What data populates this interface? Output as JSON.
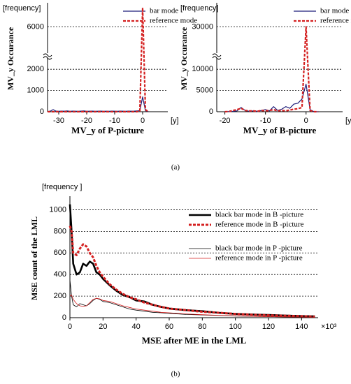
{
  "captions": [
    "(a)",
    "(b)"
  ],
  "chart_data": [
    {
      "type": "line",
      "unit_label": "[frequency]",
      "x_label": "MV_y of P-picture",
      "y_label": "MV_y Occurance",
      "x_unit": "[y]",
      "x": [
        -34,
        -33,
        -32,
        -31,
        -30,
        -29,
        -28,
        -27,
        -26,
        -25,
        -24,
        -23,
        -22,
        -21,
        -20,
        -19,
        -18,
        -17,
        -16,
        -15,
        -14,
        -13,
        -12,
        -11,
        -10,
        -9,
        -8,
        -7,
        -6,
        -5,
        -4,
        -3,
        -2,
        -1,
        0,
        1,
        2
      ],
      "series": [
        {
          "name": "bar mode",
          "color": "#1f1f7a",
          "line_width": 1.2,
          "dash": false,
          "values": [
            10,
            30,
            100,
            30,
            20,
            30,
            25,
            40,
            20,
            30,
            25,
            20,
            30,
            35,
            20,
            25,
            30,
            20,
            25,
            30,
            20,
            25,
            20,
            30,
            25,
            20,
            30,
            25,
            20,
            30,
            25,
            30,
            40,
            50,
            700,
            50,
            10
          ]
        },
        {
          "name": "reference mode",
          "color": "#d42020",
          "line_width": 2.2,
          "dash": true,
          "values": [
            0,
            0,
            0,
            0,
            0,
            0,
            0,
            0,
            0,
            0,
            0,
            0,
            0,
            0,
            0,
            0,
            0,
            0,
            0,
            0,
            0,
            0,
            0,
            0,
            0,
            0,
            0,
            0,
            0,
            0,
            0,
            0,
            0,
            30,
            6900,
            100,
            0
          ]
        }
      ],
      "xlim": [
        -34,
        9
      ],
      "xticks": [
        -30,
        -20,
        -10,
        0
      ],
      "ylim": [
        0,
        7000
      ],
      "ybreak": [
        2500,
        4500
      ],
      "yticks": [
        0,
        1000,
        2000,
        6000
      ],
      "grid": true
    },
    {
      "type": "line",
      "unit_label": "[frequency]",
      "x_label": "MV_y of B-picture",
      "y_label": "MV_y Occurance",
      "x_unit": "[y]",
      "x": [
        -20,
        -19,
        -18,
        -17,
        -16,
        -15,
        -14,
        -13,
        -12,
        -11,
        -10,
        -9,
        -8,
        -7,
        -6,
        -5,
        -4,
        -3,
        -2,
        -1,
        0,
        1,
        2,
        3
      ],
      "series": [
        {
          "name": "bar mode",
          "color": "#1f1f7a",
          "line_width": 1.2,
          "dash": false,
          "values": [
            0,
            50,
            100,
            200,
            1000,
            300,
            100,
            200,
            100,
            300,
            500,
            200,
            1200,
            300,
            600,
            1200,
            800,
            1800,
            2000,
            3000,
            6500,
            500,
            0,
            0
          ]
        },
        {
          "name": "reference mode",
          "color": "#d42020",
          "line_width": 2.2,
          "dash": true,
          "values": [
            0,
            50,
            300,
            500,
            800,
            300,
            200,
            200,
            100,
            300,
            200,
            300,
            500,
            200,
            300,
            200,
            400,
            600,
            700,
            1000,
            30000,
            300,
            0,
            0
          ]
        }
      ],
      "xlim": [
        -22,
        9
      ],
      "xticks": [
        -20,
        -10,
        0
      ],
      "ylim": [
        0,
        35000
      ],
      "ybreak": [
        12500,
        22500
      ],
      "yticks": [
        0,
        5000,
        10000,
        30000
      ],
      "grid": true
    },
    {
      "type": "line",
      "unit_label": "[frequency ]",
      "x_label": "MSE after ME in the LML",
      "y_label": "MSE count of the LML",
      "x_unit": "×10³",
      "x": [
        0,
        1,
        2,
        4,
        6,
        8,
        10,
        12,
        14,
        16,
        18,
        20,
        24,
        28,
        32,
        36,
        40,
        45,
        50,
        55,
        60,
        70,
        80,
        90,
        100,
        110,
        120,
        130,
        140,
        148
      ],
      "series": [
        {
          "name": "black bar mode in B -picture",
          "color": "#000000",
          "line_width": 2.6,
          "dash": false,
          "values": [
            1050,
            800,
            500,
            400,
            420,
            500,
            480,
            520,
            500,
            420,
            400,
            360,
            300,
            250,
            210,
            190,
            160,
            150,
            120,
            100,
            85,
            70,
            60,
            45,
            35,
            30,
            25,
            20,
            15,
            12
          ]
        },
        {
          "name": "reference mode in B -picture",
          "color": "#d42020",
          "line_width": 3,
          "dash": true,
          "values": [
            850,
            800,
            600,
            580,
            640,
            680,
            660,
            600,
            560,
            480,
            420,
            380,
            310,
            260,
            220,
            190,
            170,
            140,
            120,
            100,
            85,
            70,
            55,
            45,
            35,
            28,
            22,
            18,
            14,
            10
          ]
        },
        {
          "name": "black bar mode in P -picture",
          "color": "#000000",
          "line_width": 0.8,
          "dash": false,
          "values": [
            350,
            200,
            120,
            100,
            130,
            120,
            110,
            130,
            160,
            180,
            170,
            150,
            140,
            120,
            100,
            80,
            70,
            60,
            50,
            45,
            40,
            30,
            25,
            20,
            15,
            12,
            10,
            8,
            6,
            5
          ]
        },
        {
          "name": "reference mode in P -picture",
          "color": "#d42020",
          "line_width": 0.8,
          "dash": false,
          "values": [
            200,
            210,
            170,
            130,
            110,
            105,
            110,
            140,
            170,
            180,
            175,
            160,
            150,
            130,
            110,
            95,
            80,
            70,
            60,
            50,
            45,
            35,
            28,
            22,
            17,
            13,
            10,
            8,
            6,
            5
          ]
        }
      ],
      "xlim": [
        0,
        150
      ],
      "xticks": [
        0,
        20,
        40,
        60,
        80,
        100,
        120,
        140
      ],
      "ylim": [
        0,
        1100
      ],
      "yticks": [
        0,
        200,
        400,
        600,
        800,
        1000
      ],
      "grid": true
    }
  ]
}
